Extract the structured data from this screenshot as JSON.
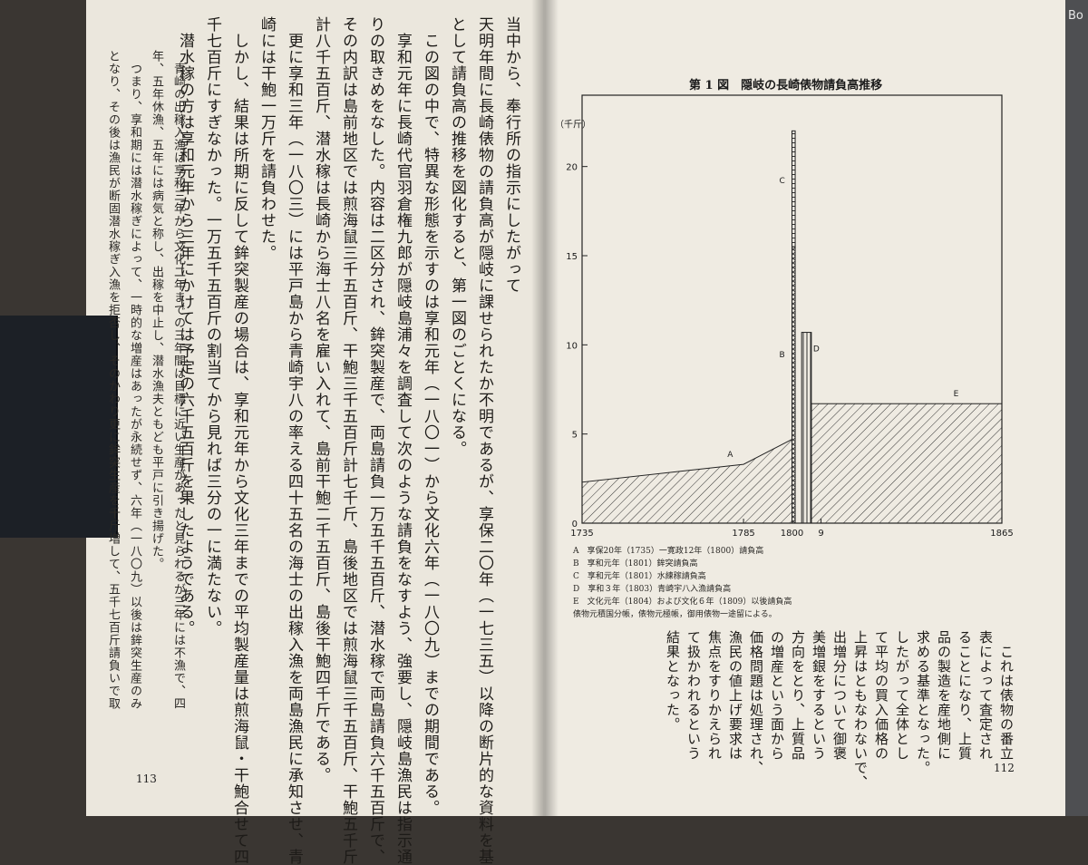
{
  "left_page": {
    "page_number": "113",
    "body_columns": [
      "当中から、奉行所の指示にしたがって",
      "天明年間に長崎俵物の請負高が隠岐に課せられたか不明であるが、享保二〇年（一七三五）以降の断片的な資料を基",
      "として請負高の推移を図化すると、第一図のごとくになる。",
      "　この図の中で、特異な形態を示すのは享和元年（一八〇一）から文化六年（一八〇九）までの期間である。",
      "　享和元年に長崎代官羽倉権九郎が隠岐島浦々を調査して次のような請負をなすよう、強要し、隠岐島漁民は指示通",
      "りの取きめをなした。内容は二区分され、鉾突製産で、両島請負一万五千五百斤、潜水稼で両島請負六千五百斤で、",
      "その内訳は島前地区では煎海鼠三千五百斤、干鮑三千五百斤計七千斤、島後地区では煎海鼠三千五百斤、干鮑五千斤",
      "計八千五百斤、潜水稼は長崎から海士八名を雇い入れて、島前干鮑二千五百斤、島後干鮑四千斤である。",
      "　更に享和三年（一八〇三）には平戸島から青崎宇八の率える四十五名の海士の出稼入漁を両島漁民に承知させ、青",
      "崎には干鮑一万斤を請負わせた。",
      "　しかし、結果は所期に反して鉾突製産の場合は、享和元年から文化三年までの平均製産量は煎海鼠・干鮑合せて四",
      "千七百斤にすぎなかった。一万五千五百斤の割当てから見れば三分の一に満たない。",
      "　潜水稼の方は享和元年から三年にかけては予定の六千五百斤を果したようである。"
    ],
    "note_columns": [
      "　青崎の出稼入漁は享和三年から文化二年までの三年間は目標に近い生産があったと見られるが三年には不漁で、四",
      "年、五年休漁、五年には病気と称し、出稼を中止し、潜水漁夫ともども平戸に引き揚げた。",
      "　つまり、享和期には潜水稼ぎによって、一時的な増産はあったが永続せず、六年（一八〇九）以後は鉾突生産のみ",
      "となり、その後は漁民が断固潜水稼ぎ入漁を拒否し、そのかわり更に鉾突生産を千斤増して、五千七百斤請負いで取"
    ]
  },
  "right_page": {
    "page_number": "112",
    "figure_title": "第 1 図　隠岐の長崎俵物請負高推移",
    "caption_lines": [
      "A　享保20年（1735）一寛政12年（1800）請負高",
      "B　享和元年（1801）鉾突請負高",
      "C　享和元年（1801）水練稼請負高",
      "D　享和３年（1803）青崎宇八入漁請負高",
      "E　文化元年（1804）および文化６年（1809）以後請負高",
      "俵物元積国分帳，俵物元極帳，御用俵物一途留による。"
    ],
    "body_columns": [
      "　これは俵物の番立",
      "表によって査定され",
      "ることになり、上質",
      "品の製造を産地側に",
      "求める基準となった。",
      "したがって全体とし",
      "て平均の買入価格の",
      "上昇はともなわないで、",
      "出増分について御褒",
      "美増銀をするという",
      "方向をとり、上質品",
      "の増産という面から",
      "価格問題は処理され、",
      "漁民の値上げ要求は",
      "焦点をすりかえられ",
      "て扱かわれるという",
      "結果となった。"
    ]
  },
  "edge_tab_text": "Bo",
  "chart_data": {
    "type": "area",
    "title": "隠岐の長崎俵物請負高推移",
    "ylabel": "（千斤）",
    "xlabel": "",
    "xlim": [
      1735,
      1865
    ],
    "ylim": [
      0,
      24
    ],
    "x_ticks": [
      "1735",
      "1785",
      "1800",
      "9",
      "1865"
    ],
    "y_ticks": [
      "0",
      "5",
      "10",
      "15",
      "20"
    ],
    "series": [
      {
        "name": "A",
        "x": [
          1735,
          1785,
          1800
        ],
        "y": [
          2.3,
          3.3,
          4.7
        ]
      },
      {
        "name": "B",
        "x": [
          1800,
          1801
        ],
        "y": [
          15.5,
          15.5
        ]
      },
      {
        "name": "C",
        "x": [
          1800,
          1801
        ],
        "y": [
          22.0,
          22.0
        ]
      },
      {
        "name": "D",
        "x": [
          1803,
          1806
        ],
        "y": [
          10.7,
          10.7
        ]
      },
      {
        "name": "E",
        "x": [
          1806,
          1865
        ],
        "y": [
          6.7,
          6.7
        ]
      }
    ]
  }
}
